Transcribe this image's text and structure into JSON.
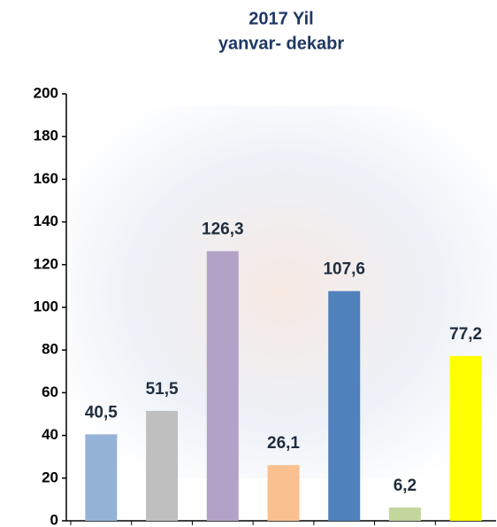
{
  "chart_data": {
    "type": "bar",
    "title": "2017 Yil",
    "subtitle": "yanvar- dekabr",
    "categories": [
      null,
      null,
      null,
      null,
      null,
      null,
      null
    ],
    "values": [
      40.5,
      51.5,
      126.3,
      26.1,
      107.6,
      6.2,
      77.2
    ],
    "value_labels": [
      "40,5",
      "51,5",
      "126,3",
      "26,1",
      "107,6",
      "6,2",
      "77,2"
    ],
    "colors": [
      "#95b3d7",
      "#bfbfbf",
      "#b3a2c7",
      "#fac090",
      "#4f81bd",
      "#c3d69b",
      "#ffff00"
    ],
    "ylim": [
      0,
      200
    ],
    "yticks": [
      0,
      20,
      40,
      60,
      80,
      100,
      120,
      140,
      160,
      180,
      200
    ],
    "grid": false
  }
}
